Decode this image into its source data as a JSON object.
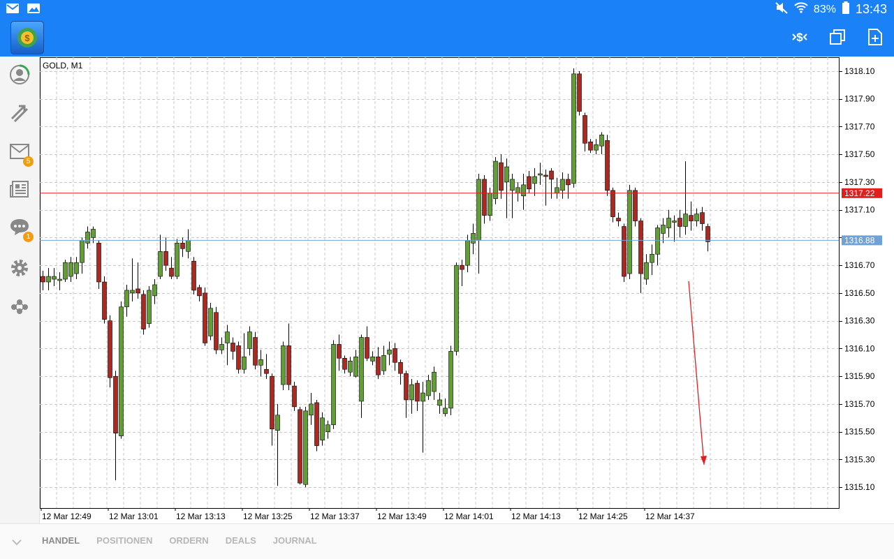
{
  "status_bar": {
    "left_icons": [
      "mail-icon",
      "image-icon"
    ],
    "right_icons": [
      "mute-icon",
      "wifi-icon",
      "battery-icon"
    ],
    "battery": "83%",
    "time": "13:43"
  },
  "app_bar": {
    "logo": "metatrader-logo",
    "actions": [
      "currency-dollar-icon",
      "windows-icon",
      "new-document-icon"
    ]
  },
  "sidebar": {
    "items": [
      {
        "icon": "account-icon",
        "badge": ""
      },
      {
        "icon": "trade-arrows-icon",
        "badge": ""
      },
      {
        "icon": "mail-icon",
        "badge": "5"
      },
      {
        "icon": "news-icon",
        "badge": ""
      },
      {
        "icon": "chat-icon",
        "badge": "1"
      },
      {
        "icon": "settings-icon",
        "badge": ""
      },
      {
        "icon": "community-icon",
        "badge": ""
      }
    ]
  },
  "chart": {
    "symbol": "GOLD, M1",
    "colors": {
      "bull": "#5fa12f",
      "bear": "#b3261e",
      "ask_line": "#e11d1d",
      "bid_line": "#6fa3d6",
      "grid": "#c8c8c8"
    }
  },
  "chart_data": {
    "type": "candlestick",
    "ylim": [
      1314.95,
      1318.2
    ],
    "y_ticks": [
      "1318.10",
      "1317.90",
      "1317.70",
      "1317.50",
      "1317.30",
      "1317.10",
      "1316.70",
      "1316.50",
      "1316.30",
      "1316.10",
      "1315.90",
      "1315.70",
      "1315.50",
      "1315.30",
      "1315.10"
    ],
    "x_ticks": [
      "12 Mar 12:49",
      "12 Mar 13:01",
      "12 Mar 13:13",
      "12 Mar 13:25",
      "12 Mar 13:37",
      "12 Mar 13:49",
      "12 Mar 14:01",
      "12 Mar 14:13",
      "12 Mar 14:25",
      "12 Mar 14:37"
    ],
    "ask_price": "1317.22",
    "bid_price": "1316.88",
    "candles": [
      [
        1316.62,
        1316.58,
        1316.66,
        1316.52
      ],
      [
        1316.58,
        1316.62,
        1316.68,
        1316.52
      ],
      [
        1316.6,
        1316.62,
        1316.68,
        1316.55
      ],
      [
        1316.59,
        1316.6,
        1316.65,
        1316.52
      ],
      [
        1316.6,
        1316.72,
        1316.74,
        1316.58
      ],
      [
        1316.62,
        1316.72,
        1316.76,
        1316.58
      ],
      [
        1316.64,
        1316.72,
        1316.76,
        1316.6
      ],
      [
        1316.72,
        1316.88,
        1316.9,
        1316.64
      ],
      [
        1316.86,
        1316.94,
        1316.98,
        1316.82
      ],
      [
        1316.9,
        1316.96,
        1316.98,
        1316.86
      ],
      [
        1316.86,
        1316.58,
        1316.88,
        1316.53
      ],
      [
        1316.58,
        1316.31,
        1316.62,
        1316.28
      ],
      [
        1316.3,
        1315.89,
        1316.34,
        1315.82
      ],
      [
        1315.9,
        1315.49,
        1315.94,
        1315.15
      ],
      [
        1315.47,
        1316.4,
        1316.44,
        1315.45
      ],
      [
        1316.4,
        1316.52,
        1316.56,
        1316.33
      ],
      [
        1316.5,
        1316.52,
        1316.75,
        1316.44
      ],
      [
        1316.53,
        1316.5,
        1316.72,
        1316.46
      ],
      [
        1316.49,
        1316.24,
        1316.52,
        1316.2
      ],
      [
        1316.28,
        1316.52,
        1316.55,
        1316.25
      ],
      [
        1316.48,
        1316.56,
        1316.6,
        1316.42
      ],
      [
        1316.62,
        1316.8,
        1316.92,
        1316.6
      ],
      [
        1316.8,
        1316.7,
        1316.9,
        1316.66
      ],
      [
        1316.68,
        1316.62,
        1316.76,
        1316.6
      ],
      [
        1316.62,
        1316.86,
        1316.89,
        1316.6
      ],
      [
        1316.86,
        1316.82,
        1316.9,
        1316.76
      ],
      [
        1316.8,
        1316.88,
        1316.96,
        1316.75
      ],
      [
        1316.73,
        1316.52,
        1316.76,
        1316.49
      ],
      [
        1316.54,
        1316.48,
        1316.56,
        1316.44
      ],
      [
        1316.5,
        1316.14,
        1316.54,
        1316.12
      ],
      [
        1316.19,
        1316.39,
        1316.43,
        1316.16
      ],
      [
        1316.36,
        1316.09,
        1316.4,
        1316.06
      ],
      [
        1316.09,
        1316.13,
        1316.18,
        1316.06
      ],
      [
        1316.14,
        1316.22,
        1316.27,
        1315.98
      ],
      [
        1316.14,
        1316.08,
        1316.18,
        1316.02
      ],
      [
        1316.12,
        1315.95,
        1316.15,
        1315.92
      ],
      [
        1315.95,
        1316.04,
        1316.21,
        1315.92
      ],
      [
        1316.1,
        1316.22,
        1316.26,
        1316.05
      ],
      [
        1316.18,
        1315.98,
        1316.22,
        1315.95
      ],
      [
        1315.98,
        1316.02,
        1316.09,
        1315.9
      ],
      [
        1315.95,
        1315.92,
        1316.06,
        1315.88
      ],
      [
        1315.9,
        1315.52,
        1315.92,
        1315.4
      ],
      [
        1315.51,
        1315.62,
        1315.7,
        1315.11
      ],
      [
        1315.84,
        1316.12,
        1316.15,
        1315.8
      ],
      [
        1316.12,
        1315.84,
        1316.28,
        1315.8
      ],
      [
        1315.83,
        1315.68,
        1315.86,
        1315.65
      ],
      [
        1315.66,
        1315.13,
        1315.68,
        1315.12
      ],
      [
        1315.12,
        1315.65,
        1315.68,
        1315.1
      ],
      [
        1315.62,
        1315.7,
        1315.78,
        1315.55
      ],
      [
        1315.71,
        1315.4,
        1315.73,
        1315.36
      ],
      [
        1315.44,
        1315.6,
        1315.64,
        1315.4
      ],
      [
        1315.5,
        1315.55,
        1315.58,
        1315.45
      ],
      [
        1315.55,
        1316.13,
        1316.16,
        1315.52
      ],
      [
        1316.13,
        1316.03,
        1316.2,
        1315.94
      ],
      [
        1316.03,
        1315.95,
        1316.05,
        1315.92
      ],
      [
        1315.93,
        1316.01,
        1316.04,
        1315.9
      ],
      [
        1315.9,
        1316.04,
        1316.09,
        1315.89
      ],
      [
        1315.72,
        1316.18,
        1316.2,
        1315.6
      ],
      [
        1316.18,
        1316.03,
        1316.26,
        1316.01
      ],
      [
        1316.01,
        1316.04,
        1316.08,
        1315.98
      ],
      [
        1316.04,
        1315.91,
        1316.11,
        1315.88
      ],
      [
        1315.94,
        1316.05,
        1316.12,
        1315.91
      ],
      [
        1316.06,
        1316.09,
        1316.15,
        1315.98
      ],
      [
        1316.1,
        1316.0,
        1316.14,
        1315.94
      ],
      [
        1316.0,
        1315.92,
        1316.02,
        1315.84
      ],
      [
        1315.92,
        1315.73,
        1315.94,
        1315.6
      ],
      [
        1315.73,
        1315.84,
        1315.88,
        1315.63
      ],
      [
        1315.85,
        1315.72,
        1315.87,
        1315.65
      ],
      [
        1315.72,
        1315.78,
        1315.86,
        1315.35
      ],
      [
        1315.76,
        1315.87,
        1315.91,
        1315.73
      ],
      [
        1315.79,
        1315.93,
        1315.97,
        1315.73
      ],
      [
        1315.69,
        1315.73,
        1315.78,
        1315.63
      ],
      [
        1315.63,
        1315.67,
        1315.74,
        1315.61
      ],
      [
        1315.67,
        1316.08,
        1316.12,
        1315.62
      ],
      [
        1316.08,
        1316.7,
        1316.72,
        1316.05
      ],
      [
        1316.7,
        1316.67,
        1316.74,
        1316.55
      ],
      [
        1316.7,
        1316.88,
        1316.92,
        1316.65
      ],
      [
        1316.86,
        1316.93,
        1317.0,
        1316.78
      ],
      [
        1316.88,
        1317.32,
        1317.36,
        1316.64
      ],
      [
        1317.32,
        1317.06,
        1317.35,
        1317.0
      ],
      [
        1317.06,
        1317.22,
        1317.26,
        1317.02
      ],
      [
        1317.18,
        1317.45,
        1317.48,
        1317.14
      ],
      [
        1317.44,
        1317.24,
        1317.5,
        1317.18
      ],
      [
        1317.3,
        1317.41,
        1317.47,
        1317.04
      ],
      [
        1317.24,
        1317.32,
        1317.36,
        1317.04
      ],
      [
        1317.22,
        1317.26,
        1317.3,
        1317.16
      ],
      [
        1317.2,
        1317.28,
        1317.36,
        1317.1
      ],
      [
        1317.34,
        1317.25,
        1317.38,
        1317.22
      ],
      [
        1317.29,
        1317.34,
        1317.4,
        1317.2
      ],
      [
        1317.35,
        1317.36,
        1317.44,
        1317.28
      ],
      [
        1317.35,
        1317.34,
        1317.39,
        1317.13
      ],
      [
        1317.38,
        1317.32,
        1317.4,
        1317.18
      ],
      [
        1317.22,
        1317.26,
        1317.33,
        1317.18
      ],
      [
        1317.24,
        1317.32,
        1317.37,
        1317.18
      ],
      [
        1317.32,
        1317.28,
        1317.36,
        1317.18
      ],
      [
        1317.29,
        1318.08,
        1318.12,
        1317.26
      ],
      [
        1318.08,
        1317.81,
        1318.1,
        1317.78
      ],
      [
        1317.78,
        1317.58,
        1317.8,
        1317.52
      ],
      [
        1317.59,
        1317.53,
        1317.61,
        1317.51
      ],
      [
        1317.53,
        1317.57,
        1317.61,
        1317.5
      ],
      [
        1317.56,
        1317.64,
        1317.66,
        1317.5
      ],
      [
        1317.6,
        1317.24,
        1317.64,
        1317.2
      ],
      [
        1317.24,
        1317.05,
        1317.26,
        1317.01
      ],
      [
        1317.04,
        1317.02,
        1317.08,
        1316.98
      ],
      [
        1316.98,
        1316.62,
        1317.0,
        1316.58
      ],
      [
        1316.64,
        1317.24,
        1317.28,
        1316.6
      ],
      [
        1317.24,
        1317.02,
        1317.26,
        1316.98
      ],
      [
        1317.02,
        1316.64,
        1317.04,
        1316.5
      ],
      [
        1316.6,
        1316.72,
        1316.78,
        1316.56
      ],
      [
        1316.72,
        1316.78,
        1316.85,
        1316.63
      ],
      [
        1316.78,
        1316.97,
        1316.99,
        1316.7
      ],
      [
        1316.93,
        1316.99,
        1317.04,
        1316.86
      ],
      [
        1316.97,
        1317.04,
        1317.1,
        1316.9
      ],
      [
        1317.01,
        1317.02,
        1317.06,
        1316.87
      ],
      [
        1317.04,
        1316.98,
        1317.1,
        1316.9
      ],
      [
        1316.98,
        1317.07,
        1317.45,
        1316.92
      ],
      [
        1317.06,
        1317.02,
        1317.16,
        1316.95
      ],
      [
        1317.02,
        1317.07,
        1317.11,
        1316.98
      ],
      [
        1317.08,
        1317.0,
        1317.12,
        1316.95
      ],
      [
        1316.98,
        1316.87,
        1317.0,
        1316.8
      ]
    ]
  },
  "bottom_tabs": [
    "HANDEL",
    "POSITIONEN",
    "ORDERN",
    "DEALS",
    "JOURNAL"
  ]
}
